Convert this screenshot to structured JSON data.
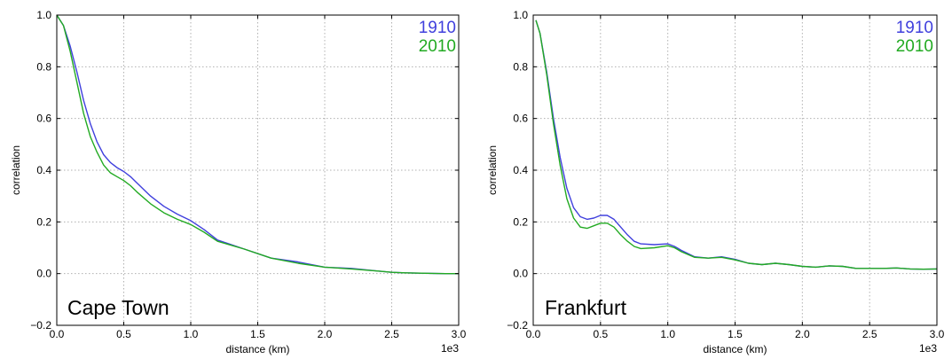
{
  "chart_data": [
    {
      "type": "line",
      "annotation": "Cape Town",
      "xlabel": "distance (km)",
      "ylabel": "correlation",
      "x_multiplier": "1e3",
      "xlim": [
        0.0,
        3.0
      ],
      "ylim": [
        -0.2,
        1.0
      ],
      "xticks": [
        "0.0",
        "0.5",
        "1.0",
        "1.5",
        "2.0",
        "2.5",
        "3.0"
      ],
      "yticks": [
        "−0.2",
        "0.0",
        "0.2",
        "0.4",
        "0.6",
        "0.8",
        "1.0"
      ],
      "grid": true,
      "legend_position": "top-right",
      "series": [
        {
          "name": "1910",
          "color": "#4040dd",
          "x": [
            0.0,
            0.05,
            0.1,
            0.15,
            0.2,
            0.25,
            0.3,
            0.35,
            0.4,
            0.45,
            0.5,
            0.55,
            0.6,
            0.7,
            0.8,
            0.9,
            1.0,
            1.1,
            1.2,
            1.4,
            1.6,
            1.8,
            2.0,
            2.2,
            2.4,
            2.5,
            2.6,
            2.8,
            2.9,
            3.0
          ],
          "values": [
            1.0,
            0.96,
            0.88,
            0.78,
            0.67,
            0.58,
            0.51,
            0.46,
            0.43,
            0.41,
            0.395,
            0.375,
            0.35,
            0.3,
            0.26,
            0.23,
            0.205,
            0.17,
            0.13,
            0.095,
            0.06,
            0.045,
            0.025,
            0.02,
            0.01,
            0.005,
            0.003,
            0.001,
            0.0,
            0.0
          ]
        },
        {
          "name": "2010",
          "color": "#22aa22",
          "x": [
            0.0,
            0.05,
            0.1,
            0.15,
            0.2,
            0.25,
            0.3,
            0.35,
            0.4,
            0.45,
            0.5,
            0.55,
            0.6,
            0.7,
            0.8,
            0.9,
            1.0,
            1.1,
            1.2,
            1.4,
            1.6,
            1.8,
            2.0,
            2.2,
            2.4,
            2.5,
            2.6,
            2.8,
            2.9,
            3.0
          ],
          "values": [
            1.0,
            0.96,
            0.86,
            0.74,
            0.62,
            0.53,
            0.47,
            0.42,
            0.39,
            0.375,
            0.36,
            0.34,
            0.315,
            0.27,
            0.235,
            0.21,
            0.19,
            0.16,
            0.125,
            0.095,
            0.06,
            0.04,
            0.025,
            0.018,
            0.01,
            0.005,
            0.003,
            0.001,
            0.0,
            0.0
          ]
        }
      ]
    },
    {
      "type": "line",
      "annotation": "Frankfurt",
      "xlabel": "distance (km)",
      "ylabel": "correlation",
      "x_multiplier": "1e3",
      "xlim": [
        0.0,
        3.0
      ],
      "ylim": [
        -0.2,
        1.0
      ],
      "xticks": [
        "0.0",
        "0.5",
        "1.0",
        "1.5",
        "2.0",
        "2.5",
        "3.0"
      ],
      "yticks": [
        "−0.2",
        "0.0",
        "0.2",
        "0.4",
        "0.6",
        "0.8",
        "1.0"
      ],
      "grid": true,
      "legend_position": "top-right",
      "series": [
        {
          "name": "1910",
          "color": "#4040dd",
          "x": [
            0.02,
            0.05,
            0.1,
            0.15,
            0.2,
            0.25,
            0.3,
            0.35,
            0.4,
            0.45,
            0.5,
            0.55,
            0.6,
            0.65,
            0.7,
            0.75,
            0.8,
            0.9,
            1.0,
            1.05,
            1.1,
            1.2,
            1.3,
            1.4,
            1.5,
            1.6,
            1.7,
            1.8,
            1.9,
            2.0,
            2.1,
            2.2,
            2.3,
            2.4,
            2.5,
            2.6,
            2.7,
            2.8,
            2.9,
            3.0
          ],
          "values": [
            0.98,
            0.93,
            0.78,
            0.6,
            0.45,
            0.33,
            0.255,
            0.22,
            0.21,
            0.215,
            0.225,
            0.225,
            0.21,
            0.18,
            0.15,
            0.125,
            0.115,
            0.112,
            0.115,
            0.105,
            0.09,
            0.065,
            0.06,
            0.065,
            0.055,
            0.04,
            0.035,
            0.04,
            0.035,
            0.028,
            0.025,
            0.03,
            0.028,
            0.02,
            0.02,
            0.02,
            0.022,
            0.018,
            0.017,
            0.018
          ]
        },
        {
          "name": "2010",
          "color": "#22aa22",
          "x": [
            0.02,
            0.05,
            0.1,
            0.15,
            0.2,
            0.25,
            0.3,
            0.35,
            0.4,
            0.45,
            0.5,
            0.55,
            0.6,
            0.65,
            0.7,
            0.75,
            0.8,
            0.9,
            1.0,
            1.05,
            1.1,
            1.2,
            1.3,
            1.4,
            1.5,
            1.6,
            1.7,
            1.8,
            1.9,
            2.0,
            2.1,
            2.2,
            2.3,
            2.4,
            2.5,
            2.6,
            2.7,
            2.8,
            2.9,
            3.0
          ],
          "values": [
            0.98,
            0.93,
            0.77,
            0.58,
            0.42,
            0.29,
            0.215,
            0.18,
            0.175,
            0.185,
            0.195,
            0.195,
            0.18,
            0.15,
            0.125,
            0.105,
            0.097,
            0.1,
            0.108,
            0.1,
            0.085,
            0.063,
            0.06,
            0.063,
            0.053,
            0.04,
            0.035,
            0.04,
            0.035,
            0.028,
            0.025,
            0.03,
            0.028,
            0.02,
            0.02,
            0.02,
            0.022,
            0.018,
            0.017,
            0.018
          ]
        }
      ]
    }
  ]
}
